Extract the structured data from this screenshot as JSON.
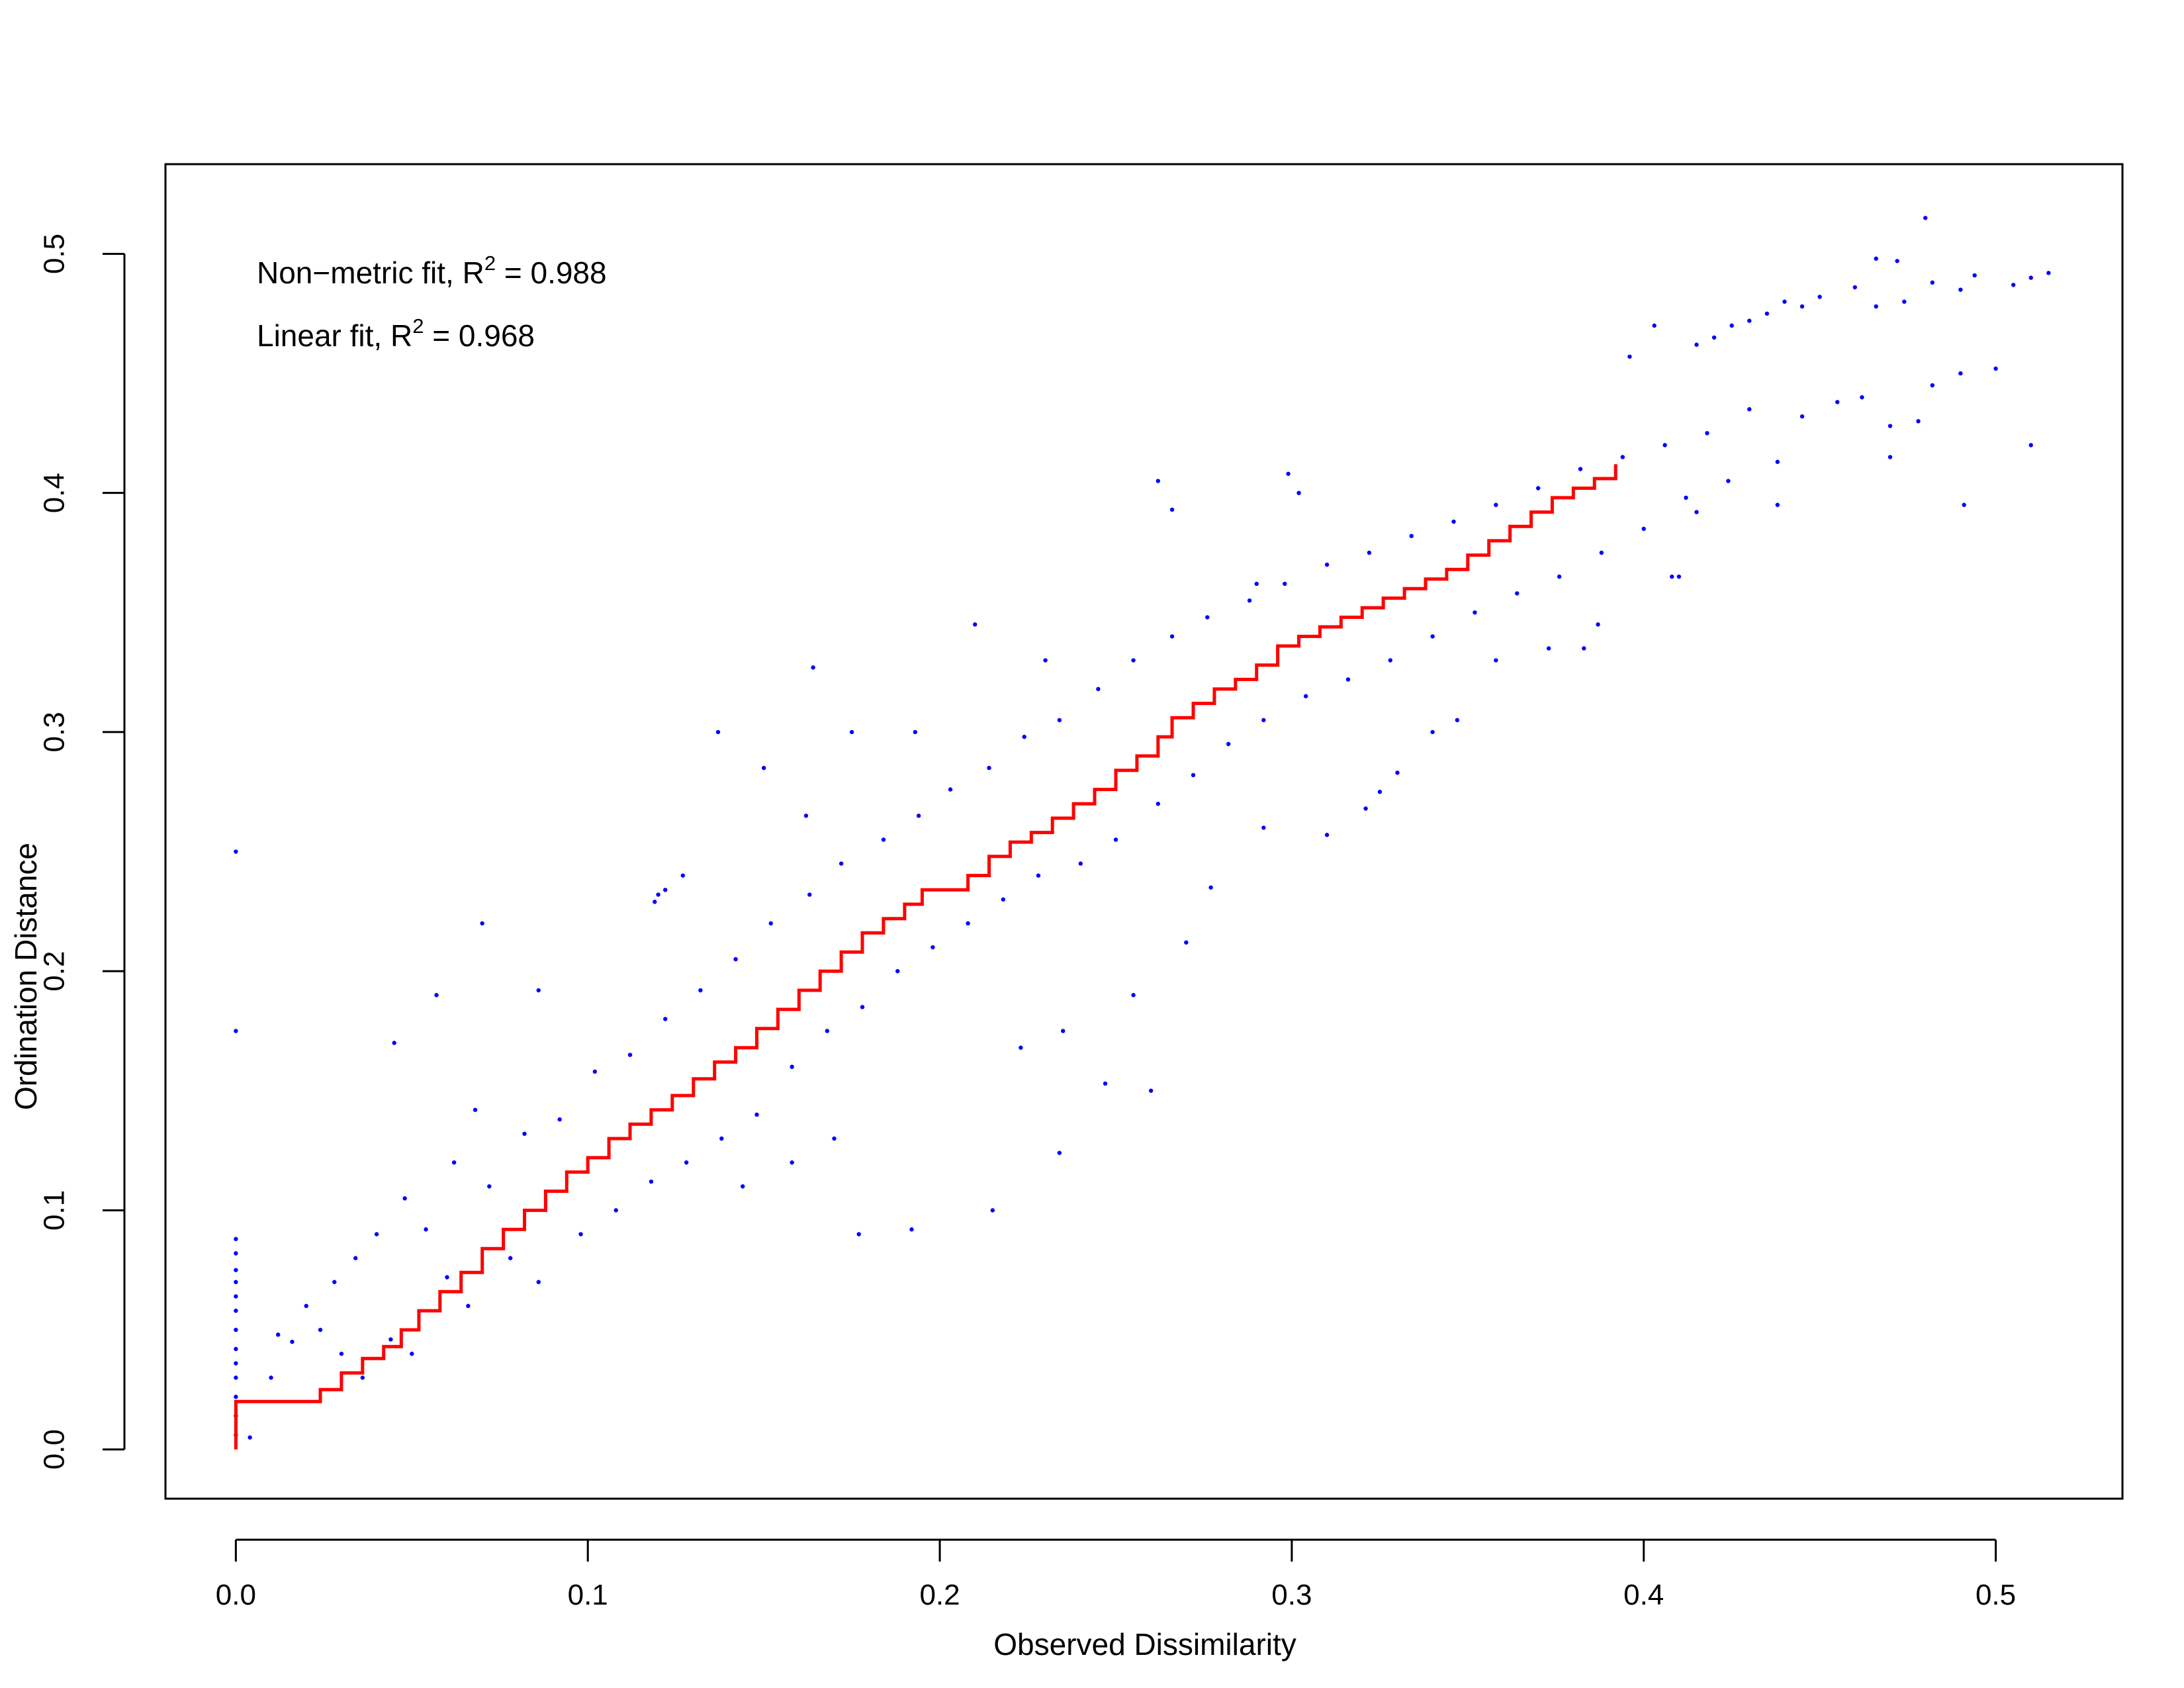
{
  "chart_data": {
    "type": "scatter",
    "title": "",
    "xlabel": "Observed Dissimilarity",
    "ylabel": "Ordination Distance",
    "xlim": [
      -0.02,
      0.536
    ],
    "ylim": [
      -0.0206,
      0.5375
    ],
    "x_ticks": [
      {
        "value": 0.0,
        "label": "0.0"
      },
      {
        "value": 0.1,
        "label": "0.1"
      },
      {
        "value": 0.2,
        "label": "0.2"
      },
      {
        "value": 0.3,
        "label": "0.3"
      },
      {
        "value": 0.4,
        "label": "0.4"
      },
      {
        "value": 0.5,
        "label": "0.5"
      }
    ],
    "y_ticks": [
      {
        "value": 0.0,
        "label": "0.0"
      },
      {
        "value": 0.1,
        "label": "0.1"
      },
      {
        "value": 0.2,
        "label": "0.2"
      },
      {
        "value": 0.3,
        "label": "0.3"
      },
      {
        "value": 0.4,
        "label": "0.4"
      },
      {
        "value": 0.5,
        "label": "0.5"
      }
    ],
    "grid": false,
    "legend": "none",
    "annotations": {
      "nonmetric": {
        "prefix": "Non−metric fit, R",
        "sup": "2",
        "suffix": " = 0.988"
      },
      "linear": {
        "prefix": "Linear fit, R",
        "sup": "2",
        "suffix": " = 0.968"
      }
    },
    "series": [
      {
        "type": "scatter",
        "color": "#0000ff",
        "points": [
          [
            0.0,
            0.25
          ],
          [
            0.0,
            0.175
          ],
          [
            0.0,
            0.088
          ],
          [
            0.0,
            0.082
          ],
          [
            0.0,
            0.075
          ],
          [
            0.0,
            0.07
          ],
          [
            0.0,
            0.064
          ],
          [
            0.0,
            0.058
          ],
          [
            0.0,
            0.05
          ],
          [
            0.0,
            0.042
          ],
          [
            0.0,
            0.036
          ],
          [
            0.0,
            0.03
          ],
          [
            0.0,
            0.022
          ],
          [
            0.0,
            0.014
          ],
          [
            0.0,
            0.006
          ],
          [
            0.045,
            0.17
          ],
          [
            0.057,
            0.19
          ],
          [
            0.068,
            0.142
          ],
          [
            0.07,
            0.22
          ],
          [
            0.086,
            0.192
          ],
          [
            0.119,
            0.229
          ],
          [
            0.12,
            0.232
          ],
          [
            0.122,
            0.234
          ],
          [
            0.127,
            0.24
          ],
          [
            0.15,
            0.285
          ],
          [
            0.137,
            0.3
          ],
          [
            0.162,
            0.265
          ],
          [
            0.164,
            0.327
          ],
          [
            0.175,
            0.3
          ],
          [
            0.193,
            0.3
          ],
          [
            0.21,
            0.345
          ],
          [
            0.23,
            0.33
          ],
          [
            0.262,
            0.405
          ],
          [
            0.266,
            0.393
          ],
          [
            0.29,
            0.362
          ],
          [
            0.299,
            0.408
          ],
          [
            0.302,
            0.4
          ],
          [
            0.158,
            0.12
          ],
          [
            0.144,
            0.11
          ],
          [
            0.17,
            0.13
          ],
          [
            0.177,
            0.09
          ],
          [
            0.192,
            0.092
          ],
          [
            0.215,
            0.1
          ],
          [
            0.223,
            0.168
          ],
          [
            0.235,
            0.175
          ],
          [
            0.234,
            0.124
          ],
          [
            0.247,
            0.153
          ],
          [
            0.26,
            0.15
          ],
          [
            0.255,
            0.19
          ],
          [
            0.277,
            0.235
          ],
          [
            0.27,
            0.212
          ],
          [
            0.292,
            0.26
          ],
          [
            0.31,
            0.257
          ],
          [
            0.321,
            0.268
          ],
          [
            0.33,
            0.283
          ],
          [
            0.325,
            0.275
          ],
          [
            0.34,
            0.3
          ],
          [
            0.347,
            0.305
          ],
          [
            0.358,
            0.33
          ],
          [
            0.373,
            0.335
          ],
          [
            0.387,
            0.345
          ],
          [
            0.383,
            0.335
          ],
          [
            0.41,
            0.365
          ],
          [
            0.408,
            0.365
          ],
          [
            0.415,
            0.392
          ],
          [
            0.438,
            0.395
          ],
          [
            0.438,
            0.413
          ],
          [
            0.47,
            0.415
          ],
          [
            0.491,
            0.395
          ],
          [
            0.51,
            0.42
          ],
          [
            0.49,
            0.45
          ],
          [
            0.5,
            0.452
          ],
          [
            0.482,
            0.445
          ],
          [
            0.445,
            0.432
          ],
          [
            0.455,
            0.438
          ],
          [
            0.462,
            0.44
          ],
          [
            0.47,
            0.428
          ],
          [
            0.478,
            0.43
          ],
          [
            0.396,
            0.457
          ],
          [
            0.403,
            0.47
          ],
          [
            0.415,
            0.462
          ],
          [
            0.42,
            0.465
          ],
          [
            0.425,
            0.47
          ],
          [
            0.43,
            0.472
          ],
          [
            0.435,
            0.475
          ],
          [
            0.44,
            0.48
          ],
          [
            0.445,
            0.478
          ],
          [
            0.45,
            0.482
          ],
          [
            0.46,
            0.486
          ],
          [
            0.466,
            0.498
          ],
          [
            0.472,
            0.497
          ],
          [
            0.48,
            0.515
          ],
          [
            0.482,
            0.488
          ],
          [
            0.49,
            0.485
          ],
          [
            0.494,
            0.491
          ],
          [
            0.505,
            0.487
          ],
          [
            0.51,
            0.49
          ],
          [
            0.515,
            0.492
          ],
          [
            0.466,
            0.478
          ],
          [
            0.474,
            0.48
          ],
          [
            0.004,
            0.005
          ],
          [
            0.01,
            0.03
          ],
          [
            0.012,
            0.048
          ],
          [
            0.016,
            0.045
          ],
          [
            0.02,
            0.06
          ],
          [
            0.024,
            0.05
          ],
          [
            0.028,
            0.07
          ],
          [
            0.03,
            0.04
          ],
          [
            0.034,
            0.08
          ],
          [
            0.036,
            0.03
          ],
          [
            0.04,
            0.09
          ],
          [
            0.044,
            0.046
          ],
          [
            0.048,
            0.105
          ],
          [
            0.05,
            0.04
          ],
          [
            0.054,
            0.092
          ],
          [
            0.06,
            0.072
          ],
          [
            0.062,
            0.12
          ],
          [
            0.066,
            0.06
          ],
          [
            0.072,
            0.11
          ],
          [
            0.078,
            0.08
          ],
          [
            0.082,
            0.132
          ],
          [
            0.086,
            0.07
          ],
          [
            0.092,
            0.138
          ],
          [
            0.098,
            0.09
          ],
          [
            0.102,
            0.158
          ],
          [
            0.108,
            0.1
          ],
          [
            0.112,
            0.165
          ],
          [
            0.118,
            0.112
          ],
          [
            0.122,
            0.18
          ],
          [
            0.128,
            0.12
          ],
          [
            0.132,
            0.192
          ],
          [
            0.138,
            0.13
          ],
          [
            0.142,
            0.205
          ],
          [
            0.148,
            0.14
          ],
          [
            0.152,
            0.22
          ],
          [
            0.158,
            0.16
          ],
          [
            0.163,
            0.232
          ],
          [
            0.168,
            0.175
          ],
          [
            0.172,
            0.245
          ],
          [
            0.178,
            0.185
          ],
          [
            0.184,
            0.255
          ],
          [
            0.188,
            0.2
          ],
          [
            0.194,
            0.265
          ],
          [
            0.198,
            0.21
          ],
          [
            0.203,
            0.276
          ],
          [
            0.208,
            0.22
          ],
          [
            0.214,
            0.285
          ],
          [
            0.218,
            0.23
          ],
          [
            0.224,
            0.298
          ],
          [
            0.228,
            0.24
          ],
          [
            0.234,
            0.305
          ],
          [
            0.24,
            0.245
          ],
          [
            0.245,
            0.318
          ],
          [
            0.25,
            0.255
          ],
          [
            0.255,
            0.33
          ],
          [
            0.262,
            0.27
          ],
          [
            0.266,
            0.34
          ],
          [
            0.272,
            0.282
          ],
          [
            0.276,
            0.348
          ],
          [
            0.282,
            0.295
          ],
          [
            0.288,
            0.355
          ],
          [
            0.292,
            0.305
          ],
          [
            0.298,
            0.362
          ],
          [
            0.304,
            0.315
          ],
          [
            0.31,
            0.37
          ],
          [
            0.316,
            0.322
          ],
          [
            0.322,
            0.375
          ],
          [
            0.328,
            0.33
          ],
          [
            0.334,
            0.382
          ],
          [
            0.34,
            0.34
          ],
          [
            0.346,
            0.388
          ],
          [
            0.352,
            0.35
          ],
          [
            0.358,
            0.395
          ],
          [
            0.364,
            0.358
          ],
          [
            0.37,
            0.402
          ],
          [
            0.376,
            0.365
          ],
          [
            0.382,
            0.41
          ],
          [
            0.388,
            0.375
          ],
          [
            0.394,
            0.415
          ],
          [
            0.4,
            0.385
          ],
          [
            0.406,
            0.42
          ],
          [
            0.412,
            0.398
          ],
          [
            0.418,
            0.425
          ],
          [
            0.424,
            0.405
          ],
          [
            0.43,
            0.435
          ]
        ]
      },
      {
        "type": "line",
        "color": "#ff0000",
        "points": [
          [
            0.0,
            0.0
          ],
          [
            0.0,
            0.02
          ],
          [
            0.019,
            0.02
          ],
          [
            0.024,
            0.025
          ],
          [
            0.03,
            0.032
          ],
          [
            0.036,
            0.038
          ],
          [
            0.042,
            0.043
          ],
          [
            0.047,
            0.05
          ],
          [
            0.052,
            0.058
          ],
          [
            0.058,
            0.066
          ],
          [
            0.064,
            0.074
          ],
          [
            0.07,
            0.084
          ],
          [
            0.076,
            0.092
          ],
          [
            0.082,
            0.1
          ],
          [
            0.088,
            0.108
          ],
          [
            0.094,
            0.116
          ],
          [
            0.1,
            0.122
          ],
          [
            0.106,
            0.13
          ],
          [
            0.112,
            0.136
          ],
          [
            0.118,
            0.142
          ],
          [
            0.124,
            0.148
          ],
          [
            0.13,
            0.155
          ],
          [
            0.136,
            0.162
          ],
          [
            0.142,
            0.168
          ],
          [
            0.148,
            0.176
          ],
          [
            0.154,
            0.184
          ],
          [
            0.16,
            0.192
          ],
          [
            0.166,
            0.2
          ],
          [
            0.172,
            0.208
          ],
          [
            0.178,
            0.216
          ],
          [
            0.184,
            0.222
          ],
          [
            0.19,
            0.228
          ],
          [
            0.195,
            0.234
          ],
          [
            0.205,
            0.234
          ],
          [
            0.208,
            0.24
          ],
          [
            0.214,
            0.248
          ],
          [
            0.22,
            0.254
          ],
          [
            0.226,
            0.258
          ],
          [
            0.232,
            0.264
          ],
          [
            0.238,
            0.27
          ],
          [
            0.244,
            0.276
          ],
          [
            0.25,
            0.284
          ],
          [
            0.256,
            0.29
          ],
          [
            0.262,
            0.298
          ],
          [
            0.266,
            0.306
          ],
          [
            0.272,
            0.312
          ],
          [
            0.278,
            0.318
          ],
          [
            0.284,
            0.322
          ],
          [
            0.29,
            0.328
          ],
          [
            0.296,
            0.336
          ],
          [
            0.302,
            0.34
          ],
          [
            0.308,
            0.344
          ],
          [
            0.314,
            0.348
          ],
          [
            0.32,
            0.352
          ],
          [
            0.326,
            0.356
          ],
          [
            0.332,
            0.36
          ],
          [
            0.338,
            0.364
          ],
          [
            0.344,
            0.368
          ],
          [
            0.35,
            0.374
          ],
          [
            0.356,
            0.38
          ],
          [
            0.362,
            0.386
          ],
          [
            0.368,
            0.392
          ],
          [
            0.374,
            0.398
          ],
          [
            0.38,
            0.402
          ],
          [
            0.386,
            0.406
          ],
          [
            0.392,
            0.412
          ]
        ]
      }
    ]
  }
}
